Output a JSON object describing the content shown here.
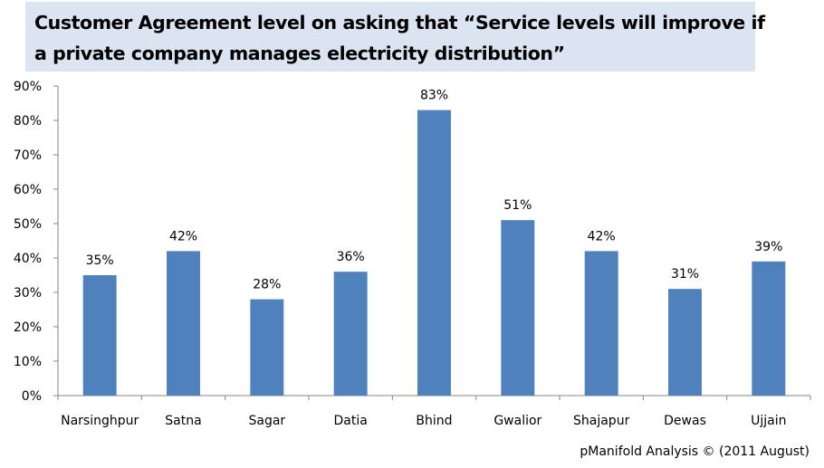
{
  "title": {
    "line1": "Customer Agreement level on asking that “Service levels will improve if",
    "line2": "a private company manages electricity distribution”"
  },
  "footnote": "pManifold Analysis © (2011 August)",
  "colors": {
    "bar": "#4f81bd",
    "title_bg": "#dbe5f1",
    "axis": "#868686"
  },
  "chart_data": {
    "type": "bar",
    "title": "Customer Agreement level on asking that “Service levels will improve if a private company manages electricity distribution”",
    "xlabel": "",
    "ylabel": "",
    "categories": [
      "Narsinghpur",
      "Satna",
      "Sagar",
      "Datia",
      "Bhind",
      "Gwalior",
      "Shajapur",
      "Dewas",
      "Ujjain"
    ],
    "values": [
      35,
      42,
      28,
      36,
      83,
      51,
      42,
      31,
      39
    ],
    "data_labels": [
      "35%",
      "42%",
      "28%",
      "36%",
      "83%",
      "51%",
      "42%",
      "31%",
      "39%"
    ],
    "ylim": [
      0,
      90
    ],
    "yticks": [
      0,
      10,
      20,
      30,
      40,
      50,
      60,
      70,
      80,
      90
    ],
    "ytick_labels": [
      "0%",
      "10%",
      "20%",
      "30%",
      "40%",
      "50%",
      "60%",
      "70%",
      "80%",
      "90%"
    ],
    "grid": false,
    "legend": "none"
  }
}
